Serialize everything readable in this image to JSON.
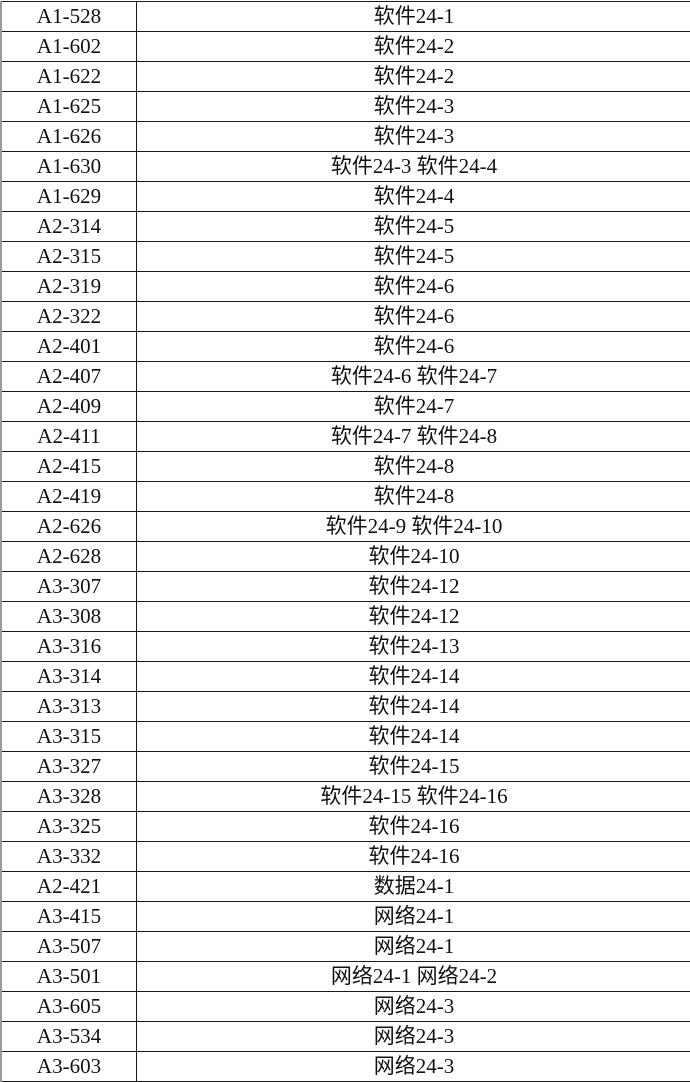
{
  "rows": [
    {
      "room": "A1-528",
      "class": "软件24-1"
    },
    {
      "room": "A1-602",
      "class": "软件24-2"
    },
    {
      "room": "A1-622",
      "class": "软件24-2"
    },
    {
      "room": "A1-625",
      "class": "软件24-3"
    },
    {
      "room": "A1-626",
      "class": "软件24-3"
    },
    {
      "room": "A1-630",
      "class": "软件24-3 软件24-4"
    },
    {
      "room": "A1-629",
      "class": "软件24-4"
    },
    {
      "room": "A2-314",
      "class": "软件24-5"
    },
    {
      "room": "A2-315",
      "class": "软件24-5"
    },
    {
      "room": "A2-319",
      "class": "软件24-6"
    },
    {
      "room": "A2-322",
      "class": "软件24-6"
    },
    {
      "room": "A2-401",
      "class": "软件24-6"
    },
    {
      "room": "A2-407",
      "class": "软件24-6 软件24-7"
    },
    {
      "room": "A2-409",
      "class": "软件24-7"
    },
    {
      "room": "A2-411",
      "class": "软件24-7 软件24-8"
    },
    {
      "room": "A2-415",
      "class": "软件24-8"
    },
    {
      "room": "A2-419",
      "class": "软件24-8"
    },
    {
      "room": "A2-626",
      "class": "软件24-9 软件24-10"
    },
    {
      "room": "A2-628",
      "class": "软件24-10"
    },
    {
      "room": "A3-307",
      "class": "软件24-12"
    },
    {
      "room": "A3-308",
      "class": "软件24-12"
    },
    {
      "room": "A3-316",
      "class": "软件24-13"
    },
    {
      "room": "A3-314",
      "class": "软件24-14"
    },
    {
      "room": "A3-313",
      "class": "软件24-14"
    },
    {
      "room": "A3-315",
      "class": "软件24-14"
    },
    {
      "room": "A3-327",
      "class": "软件24-15"
    },
    {
      "room": "A3-328",
      "class": "软件24-15 软件24-16"
    },
    {
      "room": "A3-325",
      "class": "软件24-16"
    },
    {
      "room": "A3-332",
      "class": "软件24-16"
    },
    {
      "room": "A2-421",
      "class": "数据24-1"
    },
    {
      "room": "A3-415",
      "class": "网络24-1"
    },
    {
      "room": "A3-507",
      "class": "网络24-1"
    },
    {
      "room": "A3-501",
      "class": "网络24-1 网络24-2"
    },
    {
      "room": "A3-605",
      "class": "网络24-3"
    },
    {
      "room": "A3-534",
      "class": "网络24-3"
    },
    {
      "room": "A3-603",
      "class": "网络24-3"
    }
  ]
}
